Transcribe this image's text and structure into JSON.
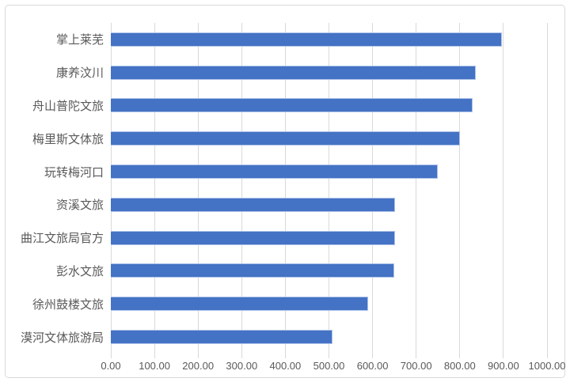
{
  "chart_data": {
    "type": "bar",
    "orientation": "horizontal",
    "title": "",
    "categories": [
      "掌上莱芜",
      "康养汶川",
      "舟山普陀文旅",
      "梅里斯文体旅",
      "玩转梅河口",
      "资溪文旅",
      "曲江文旅局官方",
      "彭水文旅",
      "徐州鼓楼文旅",
      "漠河文体旅游局"
    ],
    "values": [
      897,
      837,
      829,
      800,
      750,
      651,
      651,
      650,
      590,
      508
    ],
    "xlim": [
      0,
      1000
    ],
    "x_tick_values": [
      0,
      100,
      200,
      300,
      400,
      500,
      600,
      700,
      800,
      900,
      1000
    ],
    "x_tick_labels": [
      "0.00",
      "100.00",
      "200.00",
      "300.00",
      "400.00",
      "500.00",
      "600.00",
      "700.00",
      "800.00",
      "900.00",
      "1000.00"
    ],
    "grid": "vertical-major-gridlines",
    "legend": "none",
    "colors": {
      "bar_fill": "#4472C4",
      "bar_edge": "#AEC3E8",
      "gridline": "#D9D9D9",
      "axis_text": "#595959",
      "frame_border": "#D9D9D9",
      "background": "#FFFFFF"
    }
  }
}
